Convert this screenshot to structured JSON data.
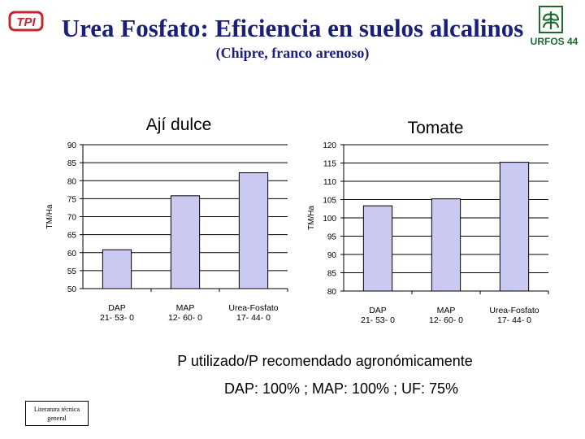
{
  "header": {
    "title": "Urea Fosfato: Eficiencia en suelos alcalinos",
    "subtitle": "(Chipre, franco arenoso)",
    "logo_left_text": "TPI",
    "logo_right_text": "URFOS 44"
  },
  "footer": {
    "note_main": "P utilizado/P recomendado agronómicamente",
    "note_sub": "DAP: 100% ; MAP: 100% ; UF: 75%",
    "literature_label": "Literatura técnica general"
  },
  "colors": {
    "title": "#1a1f7a",
    "bar_fill": "#c9c9f2",
    "bar_stroke": "#000000",
    "logo_red": "#c0282d",
    "logo_green": "#1e6b2e"
  },
  "chart_data": [
    {
      "type": "bar",
      "title": "Ají dulce",
      "ylabel": "TM/Ha",
      "categories": [
        "DAP 21- 53- 0",
        "MAP 12- 60- 0",
        "Urea-Fosfato 17- 44- 0"
      ],
      "category_lines": [
        [
          "DAP",
          "21- 53- 0"
        ],
        [
          "MAP",
          "12- 60- 0"
        ],
        [
          "Urea-Fosfato",
          "17- 44- 0"
        ]
      ],
      "values": [
        60.8,
        75.8,
        82.2
      ],
      "ylim": [
        50,
        90
      ],
      "yticks": [
        90,
        85,
        80,
        75,
        70,
        65,
        60,
        55,
        50
      ],
      "grid": true
    },
    {
      "type": "bar",
      "title": "Tomate",
      "ylabel": "TM/Ha",
      "categories": [
        "DAP 21- 53- 0",
        "MAP 12- 60- 0",
        "Urea-Fosfato 17- 44- 0"
      ],
      "category_lines": [
        [
          "DAP",
          "21- 53- 0"
        ],
        [
          "MAP",
          "12- 60- 0"
        ],
        [
          "Urea-Fosfato",
          "17- 44- 0"
        ]
      ],
      "values": [
        103.3,
        105.2,
        115.2
      ],
      "ylim": [
        80,
        120
      ],
      "yticks": [
        120,
        115,
        110,
        105,
        100,
        95,
        90,
        85,
        80
      ],
      "grid": true
    }
  ]
}
